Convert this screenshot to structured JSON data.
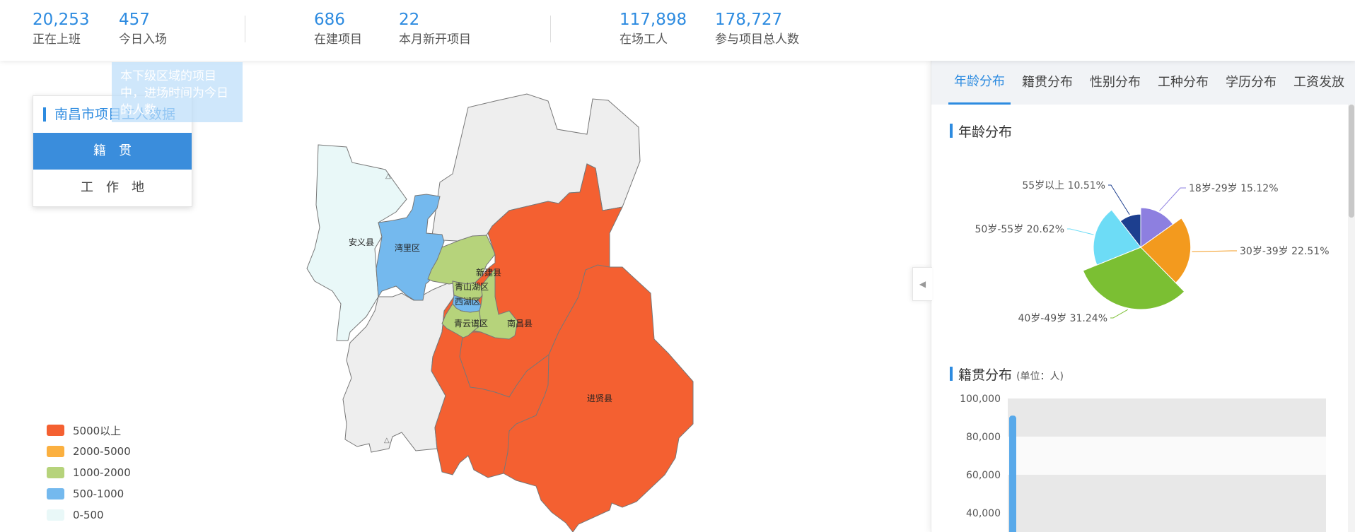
{
  "stats": [
    {
      "value": "20,253",
      "label": "正在上班"
    },
    {
      "value": "457",
      "label": "今日入场"
    },
    {
      "value": "686",
      "label": "在建项目"
    },
    {
      "value": "22",
      "label": "本月新开项目"
    },
    {
      "value": "117,898",
      "label": "在场工人"
    },
    {
      "value": "178,727",
      "label": "参与项目总人数"
    }
  ],
  "tooltip": {
    "text": "本下级区域的项目中，进场时间为今日的人数"
  },
  "switcher": {
    "title": "南昌市项目工人数据",
    "options": [
      {
        "label": "籍贯",
        "active": true
      },
      {
        "label": "工作地",
        "active": false
      }
    ]
  },
  "map": {
    "regions": [
      {
        "name": "安义县",
        "level": "0-500",
        "color": "#e9f8f8"
      },
      {
        "name": "湾里区",
        "level": "500-1000",
        "color": "#74b9ee"
      },
      {
        "name": "新建县",
        "level": "1000-2000",
        "color": "#b6d37b"
      },
      {
        "name": "青山湖区",
        "level": "1000-2000",
        "color": "#b6d37b"
      },
      {
        "name": "西湖区",
        "level": "500-1000",
        "color": "#74b9ee"
      },
      {
        "name": "青云谱区",
        "level": "1000-2000",
        "color": "#b6d37b"
      },
      {
        "name": "南昌县",
        "level": "1000-2000",
        "color": "#b6d37b"
      },
      {
        "name": "进贤县",
        "level": "5000以上",
        "color": "#f46031"
      }
    ]
  },
  "legend": [
    {
      "label": "5000以上",
      "color": "#f46031"
    },
    {
      "label": "2000-5000",
      "color": "#fbb040"
    },
    {
      "label": "1000-2000",
      "color": "#b6d37b"
    },
    {
      "label": "500-1000",
      "color": "#74b9ee"
    },
    {
      "label": "0-500",
      "color": "#e9f8f8"
    }
  ],
  "right_panel": {
    "tabs": [
      {
        "label": "年龄分布",
        "active": true
      },
      {
        "label": "籍贯分布",
        "active": false
      },
      {
        "label": "性别分布",
        "active": false
      },
      {
        "label": "工种分布",
        "active": false
      },
      {
        "label": "学历分布",
        "active": false
      },
      {
        "label": "工资发放",
        "active": false
      }
    ],
    "age_title": "年龄分布",
    "origin_title": "籍贯分布",
    "origin_unit": "(单位：人)"
  },
  "chart_data": [
    {
      "type": "pie",
      "style": "rose",
      "slices": [
        {
          "label": "18岁-29岁 15.12%",
          "value": 15.12,
          "color": "#8d7fe0"
        },
        {
          "label": "30岁-39岁 22.51%",
          "value": 22.51,
          "color": "#f39a1e"
        },
        {
          "label": "40岁-49岁 31.24%",
          "value": 31.24,
          "color": "#7bbf33"
        },
        {
          "label": "50岁-55岁 20.62%",
          "value": 20.62,
          "color": "#6ddcf6"
        },
        {
          "label": "55岁以上 10.51%",
          "value": 10.51,
          "color": "#1d3f8f"
        }
      ]
    },
    {
      "type": "bar",
      "yticks": [
        "100,000",
        "80,000",
        "60,000",
        "40,000"
      ],
      "ylim": [
        40000,
        100000
      ],
      "values": [
        91000
      ],
      "color": "#58a9ea"
    }
  ]
}
